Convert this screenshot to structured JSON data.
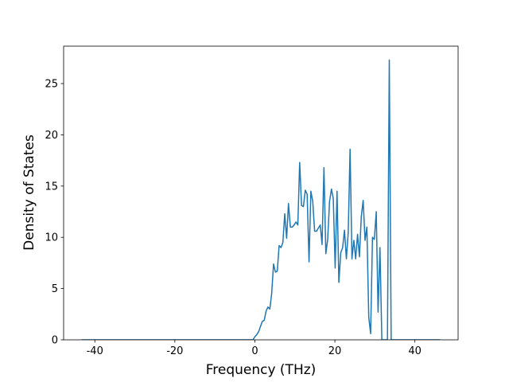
{
  "chart_data": {
    "type": "line",
    "xlabel": "Frequency (THz)",
    "ylabel": "Density of States",
    "color": "#1f77b4",
    "xlim": [
      -47.8,
      50.8
    ],
    "ylim": [
      0,
      28.65
    ],
    "xticks": [
      -40,
      -20,
      0,
      20,
      40
    ],
    "yticks": [
      0,
      5,
      10,
      15,
      20,
      25
    ],
    "x": [
      -43.3,
      -0.93,
      -0.47,
      0.0,
      0.47,
      0.94,
      1.4,
      1.87,
      2.34,
      2.8,
      3.27,
      3.74,
      4.2,
      4.67,
      5.14,
      5.6,
      6.07,
      6.54,
      7.0,
      7.47,
      7.94,
      8.4,
      8.87,
      9.34,
      9.8,
      10.27,
      10.74,
      11.2,
      11.67,
      12.14,
      12.6,
      13.07,
      13.54,
      14.0,
      14.47,
      14.94,
      15.4,
      15.87,
      16.34,
      16.8,
      17.27,
      17.74,
      18.2,
      18.67,
      19.14,
      19.6,
      20.07,
      20.54,
      21.0,
      21.47,
      21.94,
      22.4,
      22.87,
      23.34,
      23.8,
      24.27,
      24.74,
      25.2,
      25.67,
      26.14,
      26.6,
      27.07,
      27.54,
      28.0,
      28.47,
      28.94,
      29.4,
      29.87,
      30.34,
      30.8,
      31.27,
      31.74,
      32.2,
      32.67,
      33.14,
      33.6,
      34.07,
      46.3
    ],
    "values": [
      0,
      0,
      0,
      0.3,
      0.5,
      0.8,
      1.3,
      1.8,
      1.9,
      2.8,
      3.2,
      3.0,
      4.5,
      7.4,
      6.6,
      6.7,
      9.2,
      9.0,
      9.5,
      12.3,
      9.9,
      13.3,
      11,
      11,
      11.2,
      11.5,
      11.2,
      17.3,
      13.1,
      13,
      14.6,
      14.2,
      7.6,
      14.5,
      13.5,
      10.6,
      10.6,
      10.9,
      11.2,
      9.3,
      16.8,
      8.4,
      9.8,
      13.5,
      14.7,
      13.8,
      7,
      14.5,
      5.6,
      8.5,
      9,
      10.7,
      7.9,
      10.5,
      18.6,
      7.9,
      9.7,
      7.9,
      10.3,
      8.1,
      12,
      13.6,
      9.7,
      11,
      2.2,
      0.6,
      10,
      9.8,
      12.5,
      2.7,
      9,
      0,
      0,
      0,
      0,
      27.3,
      0,
      0
    ]
  }
}
